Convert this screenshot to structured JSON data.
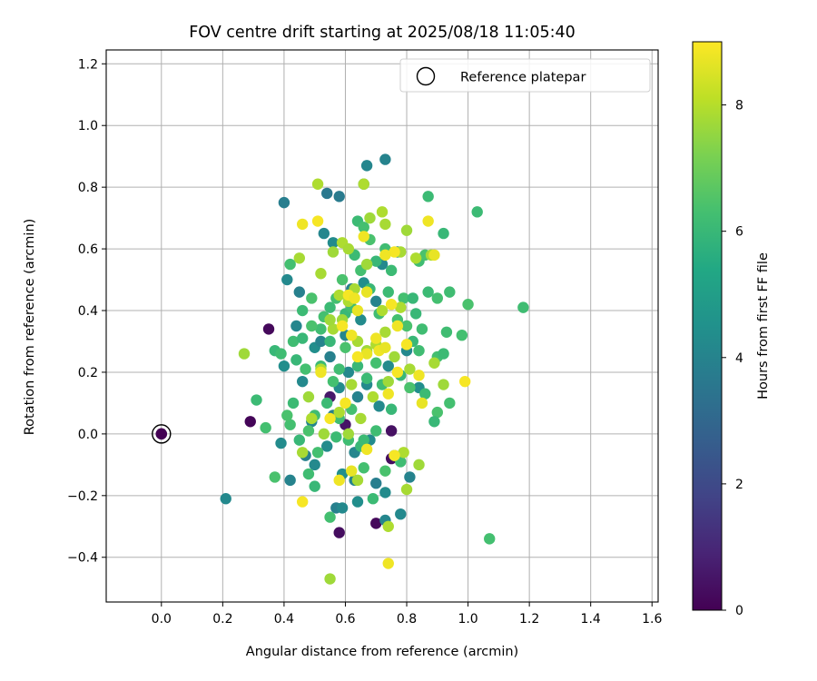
{
  "chart_data": {
    "type": "scatter",
    "title": "FOV centre drift starting at 2025/08/18 11:05:40",
    "xlabel": "Angular distance from reference (arcmin)",
    "ylabel": "Rotation from reference (arcmin)",
    "xlim": [
      -0.18,
      1.62
    ],
    "ylim": [
      -0.545,
      1.245
    ],
    "xticks": [
      0.0,
      0.2,
      0.4,
      0.6,
      0.8,
      1.0,
      1.2,
      1.4,
      1.6
    ],
    "xtick_labels": [
      "0.0",
      "0.2",
      "0.4",
      "0.6",
      "0.8",
      "1.0",
      "1.2",
      "1.4",
      "1.6"
    ],
    "yticks": [
      -0.4,
      -0.2,
      0.0,
      0.2,
      0.4,
      0.6,
      0.8,
      1.0,
      1.2
    ],
    "ytick_labels": [
      "−0.4",
      "−0.2",
      "0.0",
      "0.2",
      "0.4",
      "0.6",
      "0.8",
      "1.0",
      "1.2"
    ],
    "grid": true,
    "legend": {
      "position": "top-right",
      "entries": [
        "Reference platepar"
      ]
    },
    "reference_point": {
      "x": 0.0,
      "y": 0.0
    },
    "colorbar": {
      "label": "Hours from first FF file",
      "colormap": "viridis",
      "range": [
        0,
        9
      ],
      "ticks": [
        0,
        2,
        4,
        6,
        8
      ],
      "tick_labels": [
        "0",
        "2",
        "4",
        "6",
        "8"
      ]
    },
    "colors": {
      "reference_fill": "#440154",
      "ring": "#000000",
      "grid": "#b0b0b0"
    },
    "series": [
      {
        "columns": [
          "x",
          "y",
          "hours"
        ],
        "points": [
          [
            0.0,
            0.0,
            0.0
          ],
          [
            0.35,
            0.34,
            0.2
          ],
          [
            0.29,
            0.04,
            0.1
          ],
          [
            0.58,
            -0.32,
            0.3
          ],
          [
            0.7,
            -0.29,
            0.2
          ],
          [
            0.75,
            0.01,
            0.4
          ],
          [
            0.75,
            -0.08,
            0.3
          ],
          [
            0.6,
            0.03,
            0.5
          ],
          [
            0.55,
            0.12,
            0.6
          ],
          [
            0.21,
            -0.21,
            4.2
          ],
          [
            0.4,
            0.75,
            3.8
          ],
          [
            0.54,
            0.78,
            3.6
          ],
          [
            0.58,
            0.77,
            3.7
          ],
          [
            0.67,
            0.87,
            4.1
          ],
          [
            0.73,
            0.89,
            4.0
          ],
          [
            0.66,
            0.81,
            4.3
          ],
          [
            0.41,
            0.5,
            4.2
          ],
          [
            0.45,
            0.46,
            3.9
          ],
          [
            0.4,
            0.22,
            4.4
          ],
          [
            0.44,
            0.35,
            4.1
          ],
          [
            0.39,
            -0.03,
            4.3
          ],
          [
            0.42,
            -0.15,
            4.0
          ],
          [
            0.47,
            -0.07,
            3.9
          ],
          [
            0.5,
            -0.1,
            4.2
          ],
          [
            0.56,
            0.62,
            4.3
          ],
          [
            0.53,
            0.65,
            4.1
          ],
          [
            0.57,
            -0.24,
            3.9
          ],
          [
            0.59,
            -0.24,
            4.2
          ],
          [
            0.64,
            -0.22,
            4.4
          ],
          [
            0.73,
            -0.28,
            4.1
          ],
          [
            0.73,
            -0.19,
            4.3
          ],
          [
            0.7,
            -0.16,
            3.8
          ],
          [
            0.78,
            -0.26,
            4.2
          ],
          [
            0.81,
            -0.14,
            4.0
          ],
          [
            0.59,
            -0.13,
            4.4
          ],
          [
            0.63,
            -0.06,
            4.1
          ],
          [
            0.68,
            -0.02,
            4.3
          ],
          [
            0.61,
            0.2,
            4.2
          ],
          [
            0.55,
            0.25,
            3.9
          ],
          [
            0.6,
            0.32,
            4.1
          ],
          [
            0.65,
            0.37,
            4.3
          ],
          [
            0.7,
            0.43,
            4.0
          ],
          [
            0.66,
            0.49,
            4.4
          ],
          [
            0.72,
            0.55,
            4.2
          ],
          [
            0.77,
            0.59,
            4.1
          ],
          [
            0.62,
            0.47,
            3.9
          ],
          [
            0.5,
            0.28,
            4.4
          ],
          [
            0.46,
            0.17,
            4.2
          ],
          [
            0.58,
            0.15,
            4.3
          ],
          [
            0.52,
            0.3,
            4.0
          ],
          [
            0.67,
            0.16,
            4.2
          ],
          [
            0.74,
            0.22,
            4.3
          ],
          [
            0.49,
            0.04,
            4.1
          ],
          [
            0.54,
            -0.04,
            4.3
          ],
          [
            0.64,
            0.12,
            4.0
          ],
          [
            0.71,
            0.09,
            4.2
          ],
          [
            0.76,
            -0.07,
            4.1
          ],
          [
            0.84,
            0.15,
            4.4
          ],
          [
            0.8,
            0.27,
            4.2
          ],
          [
            0.63,
            -0.15,
            4.0
          ],
          [
            0.56,
            0.06,
            3.9
          ],
          [
            0.31,
            0.11,
            6.1
          ],
          [
            0.34,
            0.02,
            6.3
          ],
          [
            0.37,
            -0.14,
            6.4
          ],
          [
            0.37,
            0.27,
            6.0
          ],
          [
            0.39,
            0.26,
            6.2
          ],
          [
            0.42,
            0.03,
            6.3
          ],
          [
            0.43,
            0.1,
            6.1
          ],
          [
            0.44,
            0.24,
            6.0
          ],
          [
            0.41,
            0.06,
            6.4
          ],
          [
            0.43,
            0.3,
            6.2
          ],
          [
            0.42,
            0.55,
            6.3
          ],
          [
            0.46,
            0.4,
            6.1
          ],
          [
            0.46,
            0.31,
            6.0
          ],
          [
            0.52,
            0.34,
            6.2
          ],
          [
            0.53,
            0.38,
            6.3
          ],
          [
            0.49,
            0.44,
            6.4
          ],
          [
            0.55,
            0.41,
            6.1
          ],
          [
            0.57,
            0.44,
            6.3
          ],
          [
            0.6,
            0.39,
            6.0
          ],
          [
            0.62,
            0.41,
            6.2
          ],
          [
            0.64,
            0.69,
            6.1
          ],
          [
            0.66,
            0.67,
            6.3
          ],
          [
            0.68,
            0.63,
            6.4
          ],
          [
            0.7,
            0.56,
            6.0
          ],
          [
            0.73,
            0.6,
            6.2
          ],
          [
            0.75,
            0.53,
            6.1
          ],
          [
            0.79,
            0.44,
            6.3
          ],
          [
            0.82,
            0.44,
            6.0
          ],
          [
            0.84,
            0.56,
            6.2
          ],
          [
            0.86,
            0.58,
            6.4
          ],
          [
            0.87,
            0.46,
            6.1
          ],
          [
            0.9,
            0.44,
            6.3
          ],
          [
            0.92,
            0.65,
            6.0
          ],
          [
            0.94,
            0.46,
            6.2
          ],
          [
            0.98,
            0.32,
            6.3
          ],
          [
            1.03,
            0.72,
            6.1
          ],
          [
            1.0,
            0.42,
            6.4
          ],
          [
            1.18,
            0.41,
            6.2
          ],
          [
            1.07,
            -0.34,
            6.3
          ],
          [
            0.87,
            0.77,
            6.1
          ],
          [
            0.82,
            0.3,
            6.0
          ],
          [
            0.84,
            0.27,
            6.2
          ],
          [
            0.9,
            0.25,
            6.3
          ],
          [
            0.92,
            0.26,
            6.1
          ],
          [
            0.9,
            0.07,
            6.4
          ],
          [
            0.89,
            0.04,
            6.0
          ],
          [
            0.93,
            0.33,
            6.2
          ],
          [
            0.94,
            0.1,
            6.3
          ],
          [
            0.86,
            0.13,
            6.1
          ],
          [
            0.81,
            0.15,
            6.4
          ],
          [
            0.78,
            0.19,
            6.0
          ],
          [
            0.72,
            0.16,
            6.2
          ],
          [
            0.7,
            0.23,
            6.3
          ],
          [
            0.67,
            0.18,
            6.1
          ],
          [
            0.64,
            0.22,
            6.0
          ],
          [
            0.6,
            0.28,
            6.4
          ],
          [
            0.58,
            0.21,
            6.2
          ],
          [
            0.56,
            0.17,
            6.3
          ],
          [
            0.54,
            0.1,
            6.1
          ],
          [
            0.5,
            0.06,
            6.2
          ],
          [
            0.48,
            0.01,
            6.4
          ],
          [
            0.45,
            -0.02,
            6.0
          ],
          [
            0.51,
            -0.06,
            6.3
          ],
          [
            0.57,
            -0.01,
            6.1
          ],
          [
            0.61,
            -0.02,
            6.2
          ],
          [
            0.65,
            -0.04,
            6.0
          ],
          [
            0.66,
            -0.11,
            6.3
          ],
          [
            0.69,
            -0.21,
            6.1
          ],
          [
            0.73,
            -0.12,
            6.4
          ],
          [
            0.78,
            -0.09,
            6.2
          ],
          [
            0.55,
            -0.27,
            6.3
          ],
          [
            0.5,
            -0.17,
            6.0
          ],
          [
            0.48,
            -0.13,
            6.2
          ],
          [
            0.59,
            0.5,
            6.4
          ],
          [
            0.63,
            0.58,
            6.1
          ],
          [
            0.65,
            0.53,
            6.3
          ],
          [
            0.68,
            0.47,
            6.0
          ],
          [
            0.71,
            0.39,
            6.2
          ],
          [
            0.74,
            0.46,
            6.1
          ],
          [
            0.77,
            0.37,
            6.3
          ],
          [
            0.8,
            0.35,
            6.4
          ],
          [
            0.83,
            0.39,
            6.0
          ],
          [
            0.85,
            0.34,
            6.2
          ],
          [
            0.47,
            0.21,
            6.3
          ],
          [
            0.52,
            0.22,
            6.1
          ],
          [
            0.55,
            0.3,
            6.0
          ],
          [
            0.49,
            0.35,
            6.4
          ],
          [
            0.58,
            0.05,
            6.2
          ],
          [
            0.62,
            0.08,
            6.3
          ],
          [
            0.66,
            -0.02,
            6.1
          ],
          [
            0.75,
            0.08,
            6.0
          ],
          [
            0.7,
            0.01,
            6.2
          ],
          [
            0.27,
            0.26,
            7.7
          ],
          [
            0.45,
            0.57,
            7.8
          ],
          [
            0.51,
            0.81,
            7.9
          ],
          [
            0.52,
            0.52,
            7.8
          ],
          [
            0.56,
            0.59,
            7.7
          ],
          [
            0.59,
            0.62,
            7.9
          ],
          [
            0.61,
            0.6,
            7.8
          ],
          [
            0.66,
            0.81,
            7.9
          ],
          [
            0.68,
            0.7,
            7.7
          ],
          [
            0.73,
            0.68,
            7.8
          ],
          [
            0.72,
            0.72,
            7.9
          ],
          [
            0.78,
            0.59,
            7.8
          ],
          [
            0.8,
            0.66,
            7.7
          ],
          [
            0.83,
            0.57,
            7.9
          ],
          [
            0.88,
            0.58,
            7.8
          ],
          [
            0.55,
            -0.47,
            7.7
          ],
          [
            0.74,
            -0.3,
            7.9
          ],
          [
            0.8,
            -0.18,
            7.8
          ],
          [
            0.84,
            -0.1,
            7.7
          ],
          [
            0.79,
            -0.06,
            7.9
          ],
          [
            0.64,
            -0.15,
            7.8
          ],
          [
            0.53,
            0.0,
            7.7
          ],
          [
            0.58,
            0.07,
            7.9
          ],
          [
            0.62,
            0.16,
            7.8
          ],
          [
            0.48,
            0.12,
            7.7
          ],
          [
            0.52,
            0.21,
            7.9
          ],
          [
            0.56,
            0.34,
            7.8
          ],
          [
            0.59,
            0.37,
            7.7
          ],
          [
            0.61,
            0.43,
            7.9
          ],
          [
            0.64,
            0.3,
            7.8
          ],
          [
            0.67,
            0.27,
            7.7
          ],
          [
            0.7,
            0.29,
            7.9
          ],
          [
            0.73,
            0.33,
            7.8
          ],
          [
            0.76,
            0.25,
            7.7
          ],
          [
            0.78,
            0.41,
            7.9
          ],
          [
            0.81,
            0.21,
            7.8
          ],
          [
            0.74,
            0.17,
            7.7
          ],
          [
            0.69,
            0.12,
            7.9
          ],
          [
            0.65,
            0.05,
            7.8
          ],
          [
            0.61,
            0.0,
            7.7
          ],
          [
            0.49,
            0.05,
            7.9
          ],
          [
            0.46,
            -0.06,
            7.8
          ],
          [
            0.55,
            0.37,
            7.7
          ],
          [
            0.58,
            0.45,
            7.9
          ],
          [
            0.63,
            0.47,
            7.8
          ],
          [
            0.67,
            0.55,
            7.7
          ],
          [
            0.72,
            0.4,
            7.9
          ],
          [
            0.89,
            0.23,
            7.8
          ],
          [
            0.92,
            0.16,
            7.7
          ],
          [
            0.46,
            0.68,
            8.8
          ],
          [
            0.51,
            0.69,
            8.9
          ],
          [
            0.66,
            0.64,
            8.8
          ],
          [
            0.76,
            0.59,
            8.9
          ],
          [
            0.87,
            0.69,
            8.8
          ],
          [
            0.89,
            0.58,
            8.7
          ],
          [
            0.73,
            0.58,
            8.8
          ],
          [
            0.61,
            0.45,
            8.9
          ],
          [
            0.63,
            0.44,
            8.8
          ],
          [
            0.67,
            0.46,
            8.7
          ],
          [
            0.75,
            0.42,
            8.9
          ],
          [
            0.77,
            0.35,
            8.8
          ],
          [
            0.8,
            0.29,
            8.9
          ],
          [
            0.84,
            0.19,
            8.8
          ],
          [
            0.85,
            0.1,
            8.7
          ],
          [
            0.99,
            0.17,
            8.9
          ],
          [
            0.74,
            0.13,
            8.8
          ],
          [
            0.77,
            0.2,
            8.9
          ],
          [
            0.71,
            0.27,
            8.8
          ],
          [
            0.67,
            0.26,
            8.7
          ],
          [
            0.64,
            0.25,
            8.9
          ],
          [
            0.52,
            0.2,
            8.8
          ],
          [
            0.6,
            0.1,
            8.9
          ],
          [
            0.67,
            -0.05,
            8.8
          ],
          [
            0.76,
            -0.07,
            8.9
          ],
          [
            0.58,
            -0.15,
            8.8
          ],
          [
            0.62,
            -0.12,
            8.7
          ],
          [
            0.46,
            -0.22,
            8.9
          ],
          [
            0.74,
            -0.42,
            8.8
          ],
          [
            0.55,
            0.05,
            8.9
          ],
          [
            0.62,
            0.32,
            8.8
          ],
          [
            0.64,
            0.4,
            8.7
          ],
          [
            0.59,
            0.35,
            8.9
          ],
          [
            0.7,
            0.31,
            8.8
          ],
          [
            0.73,
            0.28,
            8.7
          ]
        ]
      }
    ]
  }
}
